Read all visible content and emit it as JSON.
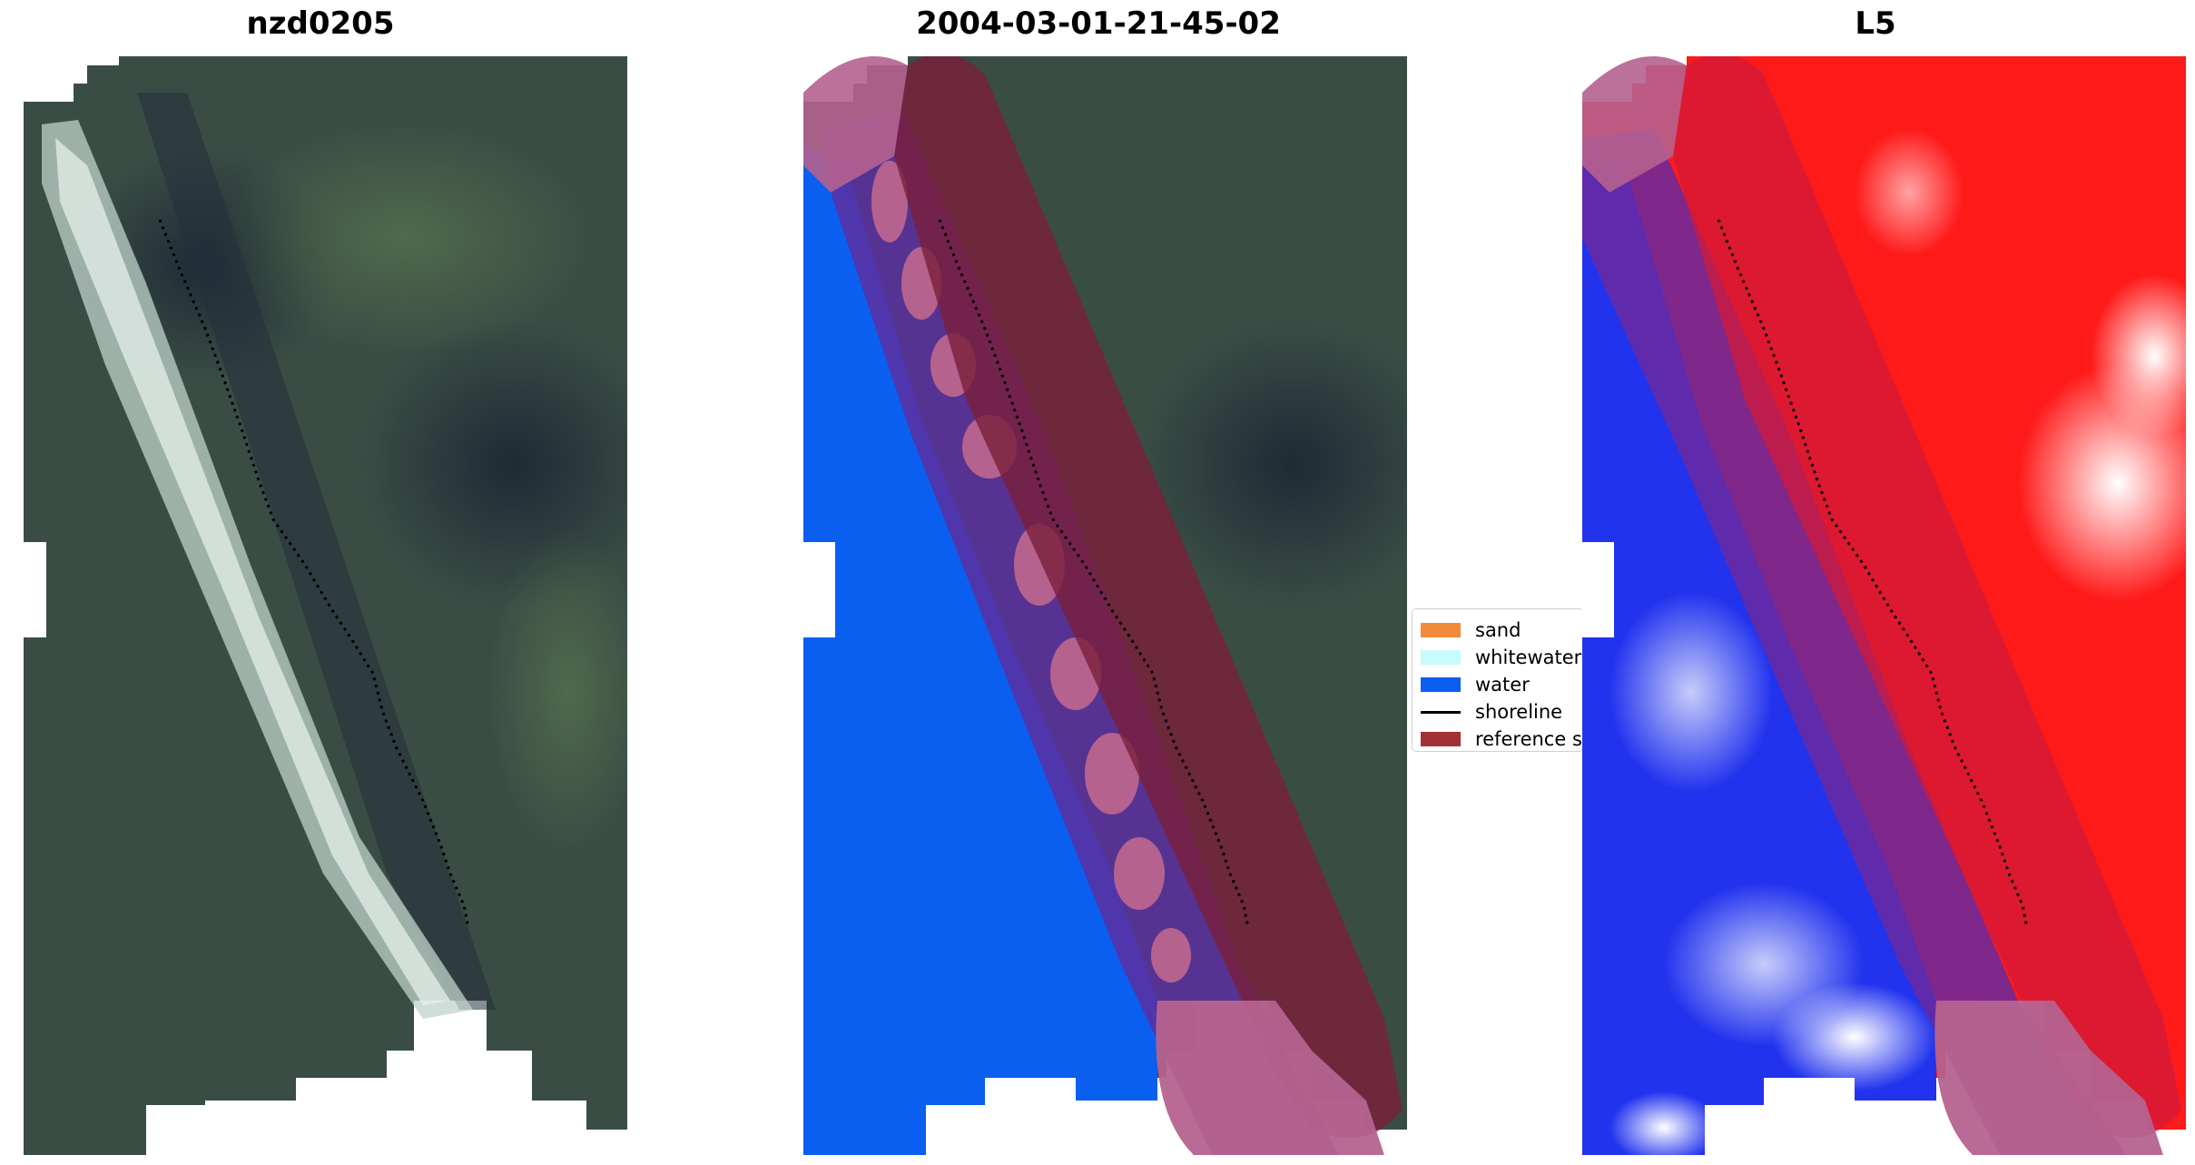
{
  "figure": {
    "panels": [
      {
        "title": "nzd0205"
      },
      {
        "title": "2004-03-01-21-45-02"
      },
      {
        "title": "L5"
      }
    ]
  },
  "legend": {
    "items": [
      {
        "label": "sand",
        "color": "#f28a3c"
      },
      {
        "label": "whitewater",
        "color": "#c8fbfb"
      },
      {
        "label": "water",
        "color": "#0a5ff0"
      },
      {
        "label": "shoreline",
        "color": "#000000"
      },
      {
        "label": "reference s",
        "color": "#a33033"
      }
    ]
  },
  "colors": {
    "land": "#3a4d45",
    "surf": "#d9e8e2",
    "water_class": "#0a5ff0",
    "buffer_overlay": "#b5628f",
    "reference_band": "#7a1f3a",
    "index_positive": "#ff1a1a",
    "index_negative": "#2233ee"
  }
}
